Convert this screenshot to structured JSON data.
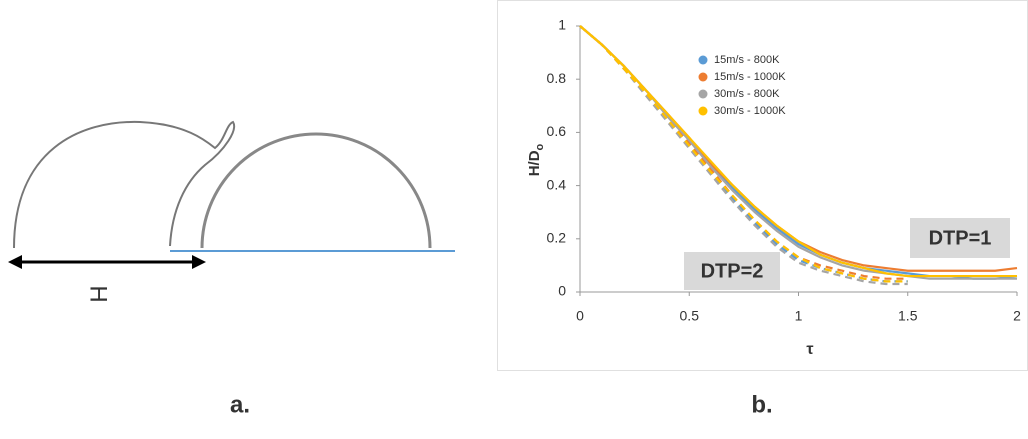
{
  "panels": {
    "a": {
      "label": "a.",
      "dimension_label": "H"
    },
    "b": {
      "label": "b."
    }
  },
  "chart_data": {
    "type": "line",
    "ylabel": {
      "main": "H/D",
      "sub": "o"
    },
    "xlabel": "τ",
    "annotations": [
      "DTP=1",
      "DTP=2"
    ],
    "x": [
      0,
      0.1,
      0.2,
      0.3,
      0.4,
      0.5,
      0.6,
      0.7,
      0.8,
      0.9,
      1.0,
      1.1,
      1.2,
      1.3,
      1.4,
      1.5,
      1.6,
      1.7,
      1.8,
      1.9,
      2.0
    ],
    "xlim": [
      0,
      2
    ],
    "xticks": [
      0,
      0.5,
      1,
      1.5,
      2
    ],
    "ylim": [
      0,
      1
    ],
    "yticks": [
      0,
      0.2,
      0.4,
      0.6,
      0.8,
      1
    ],
    "series": [
      {
        "name": "15m/s - 800K",
        "color": "#5b9bd5",
        "values": [
          1,
          0.93,
          0.85,
          0.76,
          0.67,
          0.57,
          0.48,
          0.39,
          0.31,
          0.24,
          0.18,
          0.14,
          0.11,
          0.09,
          0.08,
          0.07,
          0.06,
          0.06,
          0.05,
          0.05,
          0.06
        ],
        "dtp2_values": [
          1,
          0.93,
          0.84,
          0.75,
          0.65,
          0.55,
          0.45,
          0.35,
          0.26,
          0.18,
          0.12,
          0.09,
          0.07,
          0.05,
          0.04,
          0.04,
          null,
          null,
          null,
          null,
          null
        ]
      },
      {
        "name": "15m/s - 1000K",
        "color": "#ed7d31",
        "values": [
          1,
          0.93,
          0.85,
          0.76,
          0.67,
          0.58,
          0.48,
          0.4,
          0.32,
          0.25,
          0.19,
          0.15,
          0.12,
          0.1,
          0.09,
          0.08,
          0.08,
          0.08,
          0.08,
          0.08,
          0.09
        ],
        "dtp2_values": [
          1,
          0.93,
          0.84,
          0.75,
          0.66,
          0.56,
          0.46,
          0.36,
          0.27,
          0.19,
          0.13,
          0.1,
          0.08,
          0.06,
          0.05,
          0.05,
          null,
          null,
          null,
          null,
          null
        ]
      },
      {
        "name": "30m/s - 800K",
        "color": "#a5a5a5",
        "values": [
          1,
          0.93,
          0.85,
          0.76,
          0.66,
          0.57,
          0.47,
          0.38,
          0.3,
          0.23,
          0.17,
          0.13,
          0.1,
          0.08,
          0.07,
          0.06,
          0.05,
          0.05,
          0.05,
          0.05,
          0.05
        ],
        "dtp2_values": [
          1,
          0.93,
          0.84,
          0.74,
          0.64,
          0.54,
          0.44,
          0.34,
          0.25,
          0.17,
          0.11,
          0.08,
          0.06,
          0.04,
          0.03,
          0.03,
          null,
          null,
          null,
          null,
          null
        ]
      },
      {
        "name": "30m/s - 1000K",
        "color": "#ffc000",
        "values": [
          1,
          0.93,
          0.85,
          0.76,
          0.67,
          0.58,
          0.49,
          0.4,
          0.32,
          0.25,
          0.19,
          0.14,
          0.11,
          0.09,
          0.07,
          0.06,
          0.06,
          0.06,
          0.06,
          0.06,
          0.06
        ],
        "dtp2_values": [
          1,
          0.93,
          0.84,
          0.75,
          0.65,
          0.55,
          0.45,
          0.36,
          0.27,
          0.19,
          0.13,
          0.09,
          0.07,
          0.05,
          0.04,
          0.04,
          null,
          null,
          null,
          null,
          null
        ]
      }
    ]
  }
}
